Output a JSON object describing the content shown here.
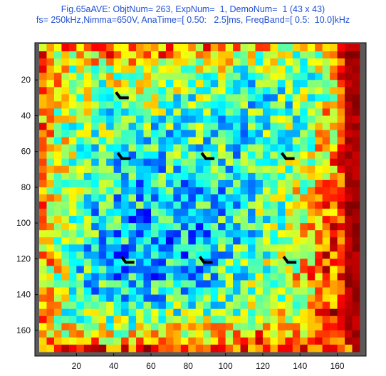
{
  "chart_data": {
    "type": "heatmap",
    "title": "Fig.65aAVE: ObjtNum= 263, ExpNum=  1, DemoNum=  1 (43 x 43)",
    "subtitle": "fs= 250kHz,Nimma=650V, AnaTime=[ 0.50:   2.5]ms, FreqBand=[ 0.5:  10.0]kHz",
    "grid_size": [
      43,
      43
    ],
    "x_range": [
      0,
      172
    ],
    "y_range": [
      0,
      172
    ],
    "y_direction": "top-to-bottom",
    "x_ticks": [
      20,
      40,
      60,
      80,
      100,
      120,
      140,
      160
    ],
    "y_ticks": [
      20,
      40,
      60,
      80,
      100,
      120,
      140,
      160
    ],
    "colormap": "jet",
    "background_color": "#5a5a5a",
    "value_range": [
      0,
      1
    ],
    "cell_values_note_free": null,
    "black_markers": [
      {
        "name": "marker-top-center-left",
        "x": 46,
        "y": 64
      },
      {
        "name": "marker-top-center",
        "x": 91,
        "y": 64
      },
      {
        "name": "marker-top-right",
        "x": 134,
        "y": 64
      },
      {
        "name": "marker-upper-small",
        "x": 45,
        "y": 30
      },
      {
        "name": "marker-bottom-left",
        "x": 48,
        "y": 122
      },
      {
        "name": "marker-bottom-center",
        "x": 90,
        "y": 122
      },
      {
        "name": "marker-bottom-right",
        "x": 135,
        "y": 122
      }
    ]
  }
}
